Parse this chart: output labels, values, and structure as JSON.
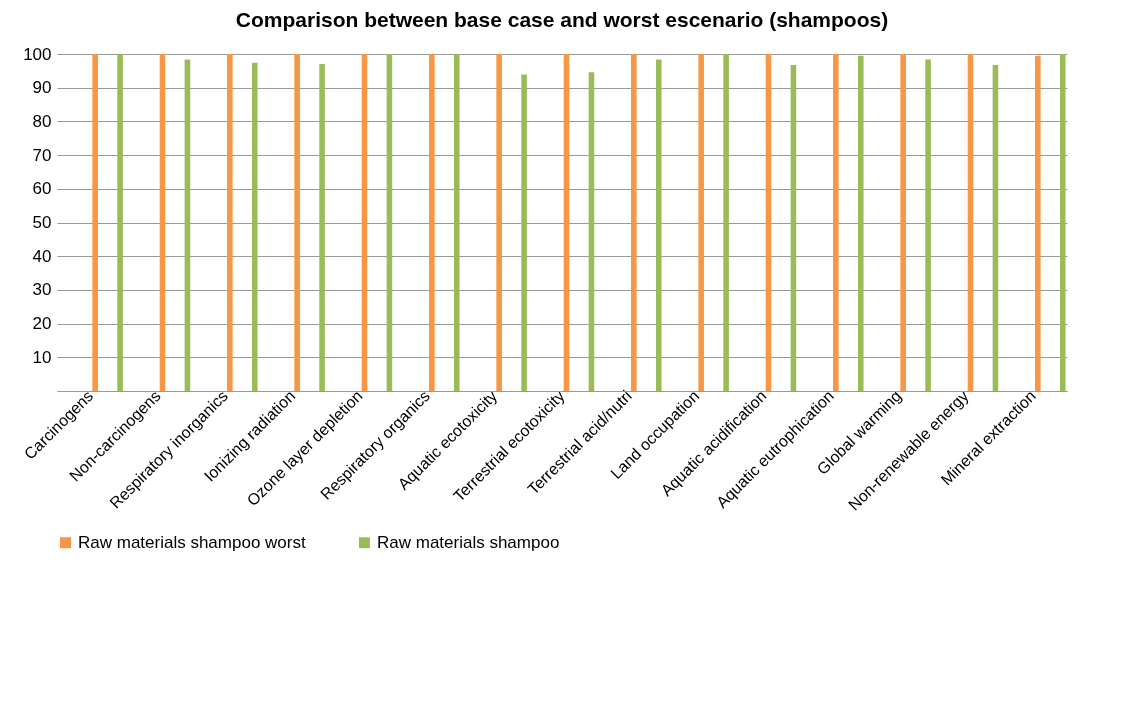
{
  "chart_data": {
    "type": "bar",
    "title": "Comparison between base case and worst  escenario (shampoos)",
    "categories": [
      "Carcinogens",
      "Non-carcinogens",
      "Respiratory inorganics",
      "Ionizing radiation",
      "Ozone layer depletion",
      "Respiratory organics",
      "Aquatic ecotoxicity",
      "Terrestrial ecotoxicity",
      "Terrestrial acid/nutri",
      "Land occupation",
      "Aquatic acidification",
      "Aquatic eutrophication",
      "Global warming",
      "Non-renewable energy",
      "Mineral extraction"
    ],
    "series": [
      {
        "name": "Raw materials shampoo worst",
        "color": "#f79646",
        "values": [
          100,
          100,
          100,
          100,
          100,
          100,
          100,
          100,
          100,
          100,
          100,
          100,
          100,
          100,
          99.5
        ]
      },
      {
        "name": "Raw materials shampoo",
        "color": "#9bbb59",
        "values": [
          100,
          98.4,
          97.4,
          97.0,
          100,
          100,
          93.9,
          94.6,
          98.4,
          100,
          96.7,
          99.5,
          98.4,
          96.7,
          100
        ]
      }
    ],
    "ylim": [
      0,
      100
    ],
    "yticks": [
      {
        "value": 0,
        "label": null
      },
      10,
      20,
      30,
      40,
      50,
      60,
      70,
      80,
      90,
      100
    ],
    "grid": "y",
    "legend": "bottom"
  }
}
